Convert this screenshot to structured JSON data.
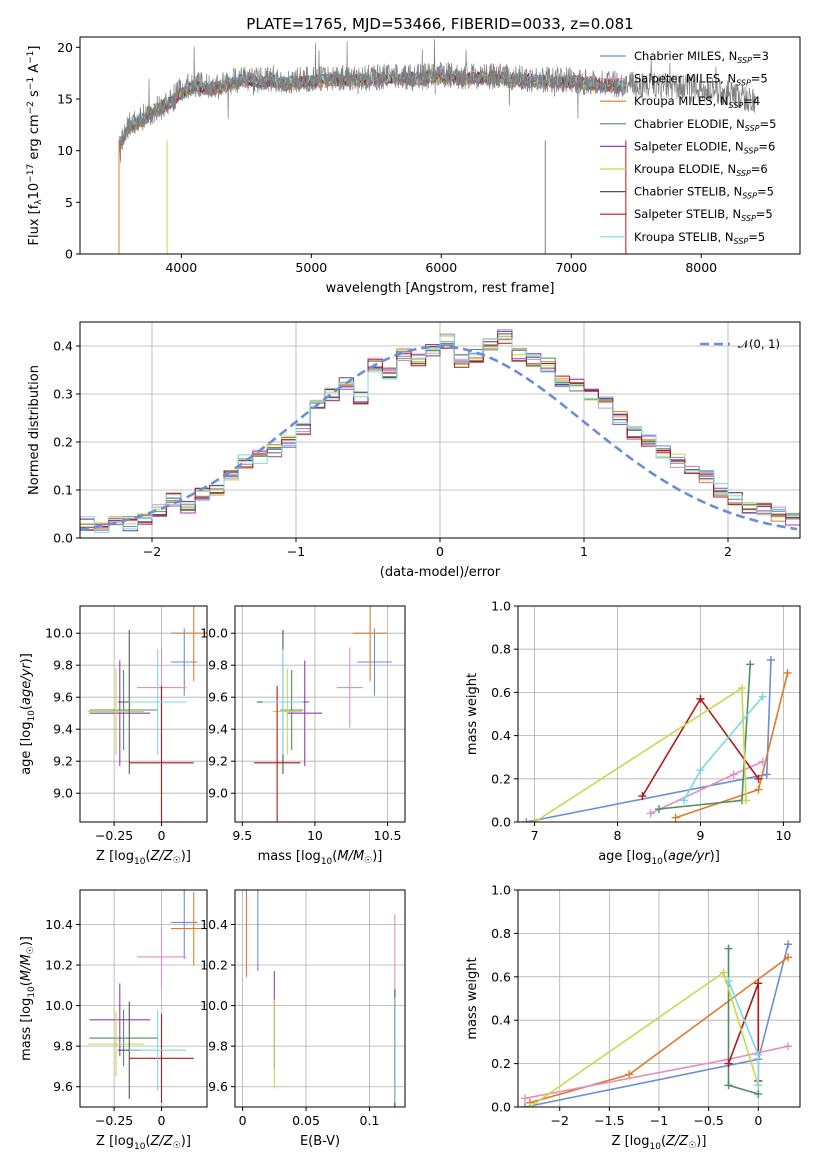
{
  "figure": {
    "title": "PLATE=1765, MJD=53466, FIBERID=0033, z=0.081"
  },
  "legend_items": [
    {
      "label": "Chabrier MILES, N",
      "sub": "SSP",
      "tail": "=3",
      "color": "#6a8fd8"
    },
    {
      "label": "Salpeter MILES, N",
      "sub": "SSP",
      "tail": "=5",
      "color": "#e58fbd"
    },
    {
      "label": "Kroupa MILES, N",
      "sub": "SSP",
      "tail": "=4",
      "color": "#e07b2a"
    },
    {
      "label": "Chabrier ELODIE, N",
      "sub": "SSP",
      "tail": "=5",
      "color": "#4f8f63"
    },
    {
      "label": "Salpeter ELODIE, N",
      "sub": "SSP",
      "tail": "=6",
      "color": "#9b3cb8"
    },
    {
      "label": "Kroupa ELODIE, N",
      "sub": "SSP",
      "tail": "=6",
      "color": "#c8d84a"
    },
    {
      "label": "Chabrier STELIB, N",
      "sub": "SSP",
      "tail": "=5",
      "color": "#555555"
    },
    {
      "label": "Salpeter STELIB, N",
      "sub": "SSP",
      "tail": "=5",
      "color": "#b01818"
    },
    {
      "label": "Kroupa STELIB, N",
      "sub": "SSP",
      "tail": "=5",
      "color": "#7fd6e6"
    }
  ],
  "chart_data": [
    {
      "id": "spectrum",
      "type": "line",
      "xlabel": "wavelength [Angstrom, rest frame]",
      "ylabel": "Flux [f_λ 10^-17 erg cm^-2 s^-1 A^-1]",
      "xlim": [
        3220,
        8760
      ],
      "ylim": [
        0,
        21
      ],
      "xticks": [
        4000,
        5000,
        6000,
        7000,
        8000
      ],
      "yticks": [
        0,
        5,
        10,
        15,
        20
      ],
      "grid": false,
      "legend_position": "right",
      "data_series": {
        "name": "data",
        "color": "#808080",
        "x": [
          3520,
          3600,
          3700,
          3800,
          3900,
          4000,
          4100,
          4200,
          4300,
          4400,
          4500,
          4600,
          4700,
          4800,
          4900,
          5000,
          5200,
          5400,
          5600,
          5800,
          6000,
          6200,
          6400,
          6600,
          6800,
          7000,
          7200,
          7400,
          7600,
          7800,
          8000,
          8200,
          8400
        ],
        "y": [
          10.5,
          12.5,
          13.2,
          14.0,
          14.5,
          16.0,
          16.5,
          16.2,
          16.3,
          16.8,
          17.0,
          16.8,
          17.0,
          16.6,
          16.8,
          16.9,
          17.1,
          17.0,
          17.2,
          17.1,
          17.3,
          17.2,
          17.2,
          17.0,
          16.9,
          16.8,
          16.6,
          16.4,
          16.3,
          16.2,
          15.9,
          15.6,
          14.8
        ]
      },
      "model_series_x": [
        3520,
        3600,
        3700,
        3800,
        3900,
        4000,
        4100,
        4200,
        4300,
        4400,
        4500,
        4600,
        4700,
        4800,
        4900,
        5000,
        5200,
        5400,
        5600,
        5800,
        6000,
        6200,
        6400,
        6600,
        6800,
        7000,
        7200,
        7400,
        7600,
        7800,
        8000,
        8200,
        8400
      ],
      "model_series_y": [
        10.3,
        12.3,
        13.0,
        13.9,
        14.4,
        15.6,
        16.2,
        16.0,
        16.1,
        16.6,
        16.8,
        16.6,
        16.8,
        16.5,
        16.6,
        16.7,
        16.9,
        16.8,
        17.0,
        16.9,
        17.1,
        17.0,
        17.0,
        16.8,
        16.7,
        16.6,
        16.4,
        16.2,
        16.1,
        16.0,
        15.7,
        15.4,
        14.6
      ]
    },
    {
      "id": "residual-hist",
      "type": "line",
      "xlabel": "(data-model)/error",
      "ylabel": "Normed distribution",
      "xlim": [
        -2.5,
        2.5
      ],
      "ylim": [
        0,
        0.45
      ],
      "xticks": [
        -2,
        -1,
        0,
        1,
        2
      ],
      "yticks": [
        0.0,
        0.1,
        0.2,
        0.3,
        0.4
      ],
      "grid": true,
      "legend_position": "top-right",
      "normal_label": "𝒩(0, 1)",
      "normal_color": "#6a8fd8",
      "hist_bins": [
        -2.5,
        -2.4,
        -2.3,
        -2.2,
        -2.1,
        -2.0,
        -1.9,
        -1.8,
        -1.7,
        -1.6,
        -1.5,
        -1.4,
        -1.3,
        -1.2,
        -1.1,
        -1.0,
        -0.9,
        -0.8,
        -0.7,
        -0.6,
        -0.5,
        -0.4,
        -0.3,
        -0.2,
        -0.1,
        0.0,
        0.1,
        0.2,
        0.3,
        0.4,
        0.5,
        0.6,
        0.7,
        0.8,
        0.9,
        1.0,
        1.1,
        1.2,
        1.3,
        1.4,
        1.5,
        1.6,
        1.7,
        1.8,
        1.9,
        2.0,
        2.1,
        2.2,
        2.3,
        2.4,
        2.5
      ],
      "hist_values": [
        0.03,
        0.02,
        0.035,
        0.03,
        0.04,
        0.055,
        0.08,
        0.065,
        0.09,
        0.1,
        0.13,
        0.16,
        0.17,
        0.18,
        0.2,
        0.23,
        0.28,
        0.3,
        0.32,
        0.29,
        0.36,
        0.34,
        0.38,
        0.37,
        0.39,
        0.41,
        0.37,
        0.38,
        0.4,
        0.42,
        0.38,
        0.37,
        0.36,
        0.33,
        0.32,
        0.3,
        0.28,
        0.25,
        0.22,
        0.2,
        0.18,
        0.16,
        0.14,
        0.13,
        0.1,
        0.08,
        0.065,
        0.06,
        0.05,
        0.04
      ]
    },
    {
      "id": "age-vs-Z",
      "type": "scatter",
      "xlabel": "Z [log10(Z/Z☉)]",
      "ylabel": "age  [log10(age/yr)]",
      "xlim": [
        -0.43,
        0.24
      ],
      "ylim": [
        8.82,
        10.17
      ],
      "xticks": [
        -0.25,
        0.0
      ],
      "yticks": [
        9.0,
        9.2,
        9.4,
        9.6,
        9.8,
        10.0
      ],
      "grid": true
    },
    {
      "id": "age-vs-mass",
      "type": "scatter",
      "xlabel": "mass [log10(M/M☉)]",
      "ylabel": "",
      "xlim": [
        9.45,
        10.62
      ],
      "ylim": [
        8.82,
        10.17
      ],
      "xticks": [
        9.5,
        10.0,
        10.5
      ],
      "yticks": [
        9.0,
        9.2,
        9.4,
        9.6,
        9.8,
        10.0
      ],
      "grid": true
    },
    {
      "id": "massweight-vs-age",
      "type": "line",
      "xlabel": "age  [log10(age/yr)]",
      "ylabel": "mass weight",
      "xlim": [
        6.8,
        10.2
      ],
      "ylim": [
        0.0,
        1.0
      ],
      "xticks": [
        7,
        8,
        9,
        10
      ],
      "yticks": [
        0.0,
        0.2,
        0.4,
        0.6,
        0.8,
        1.0
      ],
      "grid": true
    },
    {
      "id": "mass-vs-Z",
      "type": "scatter",
      "xlabel": "Z [log10(Z/Z☉)]",
      "ylabel": "mass [log10(M/M☉)]",
      "xlim": [
        -0.43,
        0.24
      ],
      "ylim": [
        9.5,
        10.57
      ],
      "xticks": [
        -0.25,
        0.0
      ],
      "yticks": [
        9.6,
        9.8,
        10.0,
        10.2,
        10.4
      ],
      "grid": true
    },
    {
      "id": "mass-vs-EBV",
      "type": "scatter",
      "xlabel": "E(B-V)",
      "ylabel": "",
      "xlim": [
        -0.006,
        0.128
      ],
      "ylim": [
        9.5,
        10.57
      ],
      "xticks": [
        0.0,
        0.05,
        0.1
      ],
      "yticks": [
        9.6,
        9.8,
        10.0,
        10.2,
        10.4
      ],
      "grid": true
    },
    {
      "id": "massweight-vs-Z",
      "type": "line",
      "xlabel": "Z [log10(Z/Z☉)]",
      "ylabel": "mass weight",
      "xlim": [
        -2.42,
        0.42
      ],
      "ylim": [
        0.0,
        1.0
      ],
      "xticks": [
        -2.0,
        -1.5,
        -1.0,
        -0.5,
        0.0
      ],
      "yticks": [
        0.0,
        0.2,
        0.4,
        0.6,
        0.8,
        1.0
      ],
      "grid": true
    }
  ],
  "estimates": [
    {
      "name": "Chabrier MILES",
      "color": "#6a8fd8",
      "Z": 0.12,
      "Zerr": 0.07,
      "age": 9.82,
      "ageerr": 0.06,
      "mass": 10.41,
      "masserr": 0.12,
      "ebv": 0.012,
      "ebverr": 0.0
    },
    {
      "name": "Salpeter MILES",
      "color": "#e58fbd",
      "Z": 0.0,
      "Zerr": 0.13,
      "age": 9.66,
      "ageerr": 0.1,
      "mass": 10.24,
      "masserr": 0.09,
      "ebv": 0.12,
      "ebverr": 0.0
    },
    {
      "name": "Kroupa MILES",
      "color": "#e07b2a",
      "Z": 0.17,
      "Zerr": 0.12,
      "age": 10.0,
      "ageerr": 0.15,
      "mass": 10.38,
      "masserr": 0.12,
      "ebv": 0.003,
      "ebverr": 0.0
    },
    {
      "name": "Chabrier ELODIE",
      "color": "#4f8f63",
      "Z": -0.2,
      "Zerr": 0.18,
      "age": 9.52,
      "ageerr": 0.1,
      "mass": 9.84,
      "masserr": 0.08,
      "ebv": 0.12,
      "ebverr": 0.0
    },
    {
      "name": "Salpeter ELODIE",
      "color": "#9b3cb8",
      "Z": -0.22,
      "Zerr": 0.16,
      "age": 9.5,
      "ageerr": 0.18,
      "mass": 9.93,
      "masserr": 0.12,
      "ebv": 0.025,
      "ebverr": 0.0
    },
    {
      "name": "Kroupa ELODIE",
      "color": "#c8d84a",
      "Z": -0.24,
      "Zerr": 0.15,
      "age": 9.51,
      "ageerr": 0.12,
      "mass": 9.81,
      "masserr": 0.1,
      "ebv": 0.025,
      "ebverr": 0.0
    },
    {
      "name": "Chabrier STELIB",
      "color": "#555555",
      "Z": -0.17,
      "Zerr": 0.06,
      "age": 9.57,
      "ageerr": 0.3,
      "mass": 9.78,
      "masserr": 0.18,
      "ebv": 0.12,
      "ebverr": 0.0
    },
    {
      "name": "Salpeter STELIB",
      "color": "#b01818",
      "Z": 0.0,
      "Zerr": 0.17,
      "age": 9.19,
      "ageerr": 0.33,
      "mass": 9.74,
      "masserr": 0.16,
      "ebv": 0.12,
      "ebverr": 0.0
    },
    {
      "name": "Kroupa STELIB",
      "color": "#7fd6e6",
      "Z": -0.02,
      "Zerr": 0.15,
      "age": 9.57,
      "ageerr": 0.18,
      "mass": 9.78,
      "masserr": 0.14,
      "ebv": 0.12,
      "ebverr": 0.0
    }
  ],
  "weights": [
    {
      "color": "#6a8fd8",
      "pts": [
        [
          6.9,
          0.0,
          -2.35
        ],
        [
          9.8,
          0.22,
          0.0
        ],
        [
          9.85,
          0.75,
          0.3
        ]
      ]
    },
    {
      "color": "#e07b2a",
      "pts": [
        [
          8.7,
          0.02,
          -2.3
        ],
        [
          9.7,
          0.15,
          -1.3
        ],
        [
          10.05,
          0.69,
          0.3
        ]
      ]
    },
    {
      "color": "#e58fbd",
      "pts": [
        [
          8.4,
          0.04,
          -2.35
        ],
        [
          9.4,
          0.22,
          -0.3
        ],
        [
          9.75,
          0.28,
          0.3
        ]
      ]
    },
    {
      "color": "#4f8f63",
      "pts": [
        [
          8.5,
          0.06,
          0.0
        ],
        [
          9.5,
          0.1,
          -0.3
        ],
        [
          9.6,
          0.73,
          -0.3
        ]
      ]
    },
    {
      "color": "#b01818",
      "pts": [
        [
          8.3,
          0.12,
          0.0
        ],
        [
          9.0,
          0.57,
          0.0
        ],
        [
          9.7,
          0.2,
          -0.3
        ]
      ]
    },
    {
      "color": "#c8d84a",
      "pts": [
        [
          7.0,
          0.0,
          -2.3
        ],
        [
          9.5,
          0.62,
          -0.35
        ],
        [
          9.55,
          0.1,
          0.0
        ]
      ]
    },
    {
      "color": "#7fd6e6",
      "pts": [
        [
          8.8,
          0.1,
          0.0
        ],
        [
          9.0,
          0.24,
          0.0
        ],
        [
          9.75,
          0.58,
          -0.3
        ]
      ]
    }
  ]
}
